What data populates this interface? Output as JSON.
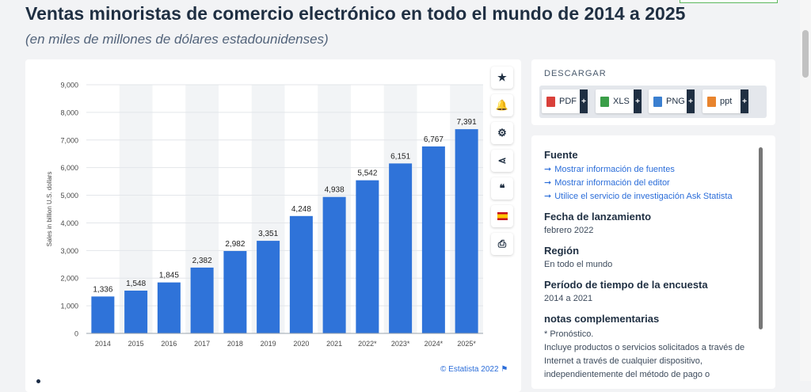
{
  "page": {
    "title": "Ventas minoristas de comercio electrónico en todo el mundo de 2014 a 2025",
    "subtitle": "(en miles de millones de dólares estadounidenses)"
  },
  "chart_data": {
    "type": "bar",
    "categories": [
      "2014",
      "2015",
      "2016",
      "2017",
      "2018",
      "2019",
      "2020",
      "2021",
      "2022*",
      "2023*",
      "2024*",
      "2025*"
    ],
    "values": [
      1336,
      1548,
      1845,
      2382,
      2982,
      3351,
      4248,
      4938,
      5542,
      6151,
      6767,
      7391
    ],
    "value_labels": [
      "1,336",
      "1,548",
      "1,845",
      "2,382",
      "2,982",
      "3,351",
      "4,248",
      "4,938",
      "5,542",
      "6,151",
      "6,767",
      "7,391"
    ],
    "ylabel": "Sales in billion U.S. dollars",
    "ylim": [
      0,
      9000
    ],
    "yticks": [
      0,
      1000,
      2000,
      3000,
      4000,
      5000,
      6000,
      7000,
      8000,
      9000
    ],
    "ytick_labels": [
      "0",
      "1,000",
      "2,000",
      "3,000",
      "4,000",
      "5,000",
      "6,000",
      "7,000",
      "8,000",
      "9,000"
    ],
    "bar_color": "#2f73d9",
    "band_color": "#f2f4f6",
    "grid": true,
    "copyright": "© Estatista 2022"
  },
  "tools": [
    {
      "icon": "star-icon",
      "glyph": "★"
    },
    {
      "icon": "bell-icon",
      "glyph": "🔔"
    },
    {
      "icon": "gear-icon",
      "glyph": "⚙"
    },
    {
      "icon": "share-icon",
      "glyph": "⋖"
    },
    {
      "icon": "quote-icon",
      "glyph": "❝"
    },
    {
      "icon": "flag-spain-icon",
      "glyph": ""
    },
    {
      "icon": "print-icon",
      "glyph": "⎙"
    }
  ],
  "download": {
    "title": "DESCARGAR",
    "buttons": [
      {
        "label": "PDF",
        "color": "#d9403a"
      },
      {
        "label": "XLS",
        "color": "#3a9e48"
      },
      {
        "label": "PNG",
        "color": "#3a7fd0"
      },
      {
        "label": "ppt",
        "color": "#e8842e"
      }
    ],
    "plus": "+"
  },
  "info": {
    "source_heading": "Fuente",
    "links": [
      "Mostrar información de fuentes",
      "Mostrar información del editor",
      "Utilice el servicio de investigación Ask Statista"
    ],
    "release_heading": "Fecha de lanzamiento",
    "release_value": "febrero 2022",
    "region_heading": "Región",
    "region_value": "En todo el mundo",
    "period_heading": "Período de tiempo de la encuesta",
    "period_value": "2014 a 2021",
    "notes_heading": "notas complementarias",
    "notes_lines": [
      "* Pronóstico.",
      "Incluye productos o servicios solicitados a través de",
      "Internet a través de cualquier dispositivo,",
      "independientemente del método de pago o"
    ]
  }
}
